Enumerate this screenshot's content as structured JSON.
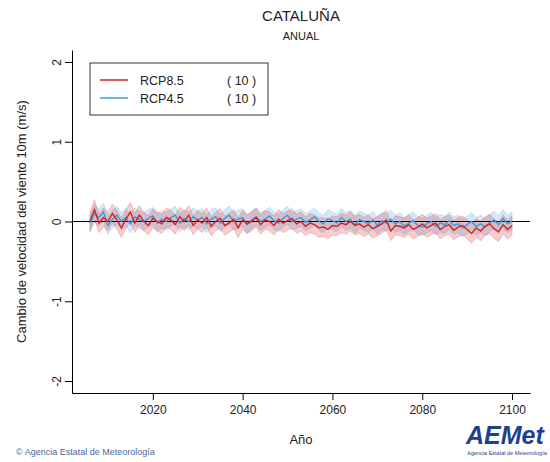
{
  "chart_data": {
    "type": "line",
    "title": "CATALUÑA",
    "subtitle": "ANUAL",
    "x_label": "Año",
    "y_label": "Cambio de velocidad del viento 10m (m/s)",
    "source": "© Agencia Estatal de Meteorología",
    "logo": "AEMet",
    "logo_subtitle": "Agencia Estatal de Meteorología",
    "xlim": [
      2002,
      2104
    ],
    "ylim": [
      -2.15,
      2.15
    ],
    "xticks": [
      2020,
      2040,
      2060,
      2080,
      2100
    ],
    "yticks": [
      -2,
      -1,
      0,
      1,
      2
    ],
    "reference_line": 0,
    "legend": "top-left",
    "x": [
      2006,
      2007,
      2008,
      2009,
      2010,
      2011,
      2012,
      2013,
      2014,
      2015,
      2016,
      2017,
      2018,
      2019,
      2020,
      2021,
      2022,
      2023,
      2024,
      2025,
      2026,
      2027,
      2028,
      2029,
      2030,
      2031,
      2032,
      2033,
      2034,
      2035,
      2036,
      2037,
      2038,
      2039,
      2040,
      2041,
      2042,
      2043,
      2044,
      2045,
      2046,
      2047,
      2048,
      2049,
      2050,
      2051,
      2052,
      2053,
      2054,
      2055,
      2056,
      2057,
      2058,
      2059,
      2060,
      2061,
      2062,
      2063,
      2064,
      2065,
      2066,
      2067,
      2068,
      2069,
      2070,
      2071,
      2072,
      2073,
      2074,
      2075,
      2076,
      2077,
      2078,
      2079,
      2080,
      2081,
      2082,
      2083,
      2084,
      2085,
      2086,
      2087,
      2088,
      2089,
      2090,
      2091,
      2092,
      2093,
      2094,
      2095,
      2096,
      2097,
      2098,
      2099,
      2100
    ],
    "series": [
      {
        "name": "RCP8.5",
        "models": "( 10 )",
        "color": "#d62020",
        "values": [
          0.0,
          0.15,
          -0.02,
          0.05,
          0.0,
          0.1,
          0.02,
          -0.08,
          0.03,
          0.12,
          -0.02,
          0.08,
          0.0,
          -0.05,
          0.04,
          0.0,
          -0.03,
          0.05,
          0.02,
          -0.04,
          0.06,
          0.0,
          0.08,
          -0.05,
          0.02,
          -0.02,
          0.05,
          -0.06,
          0.0,
          0.04,
          -0.05,
          -0.02,
          0.03,
          -0.08,
          0.02,
          -0.03,
          0.0,
          0.05,
          -0.04,
          0.02,
          0.0,
          -0.05,
          0.03,
          -0.02,
          0.01,
          0.04,
          -0.03,
          0.0,
          -0.06,
          -0.02,
          -0.04,
          -0.08,
          -0.07,
          -0.1,
          -0.05,
          -0.06,
          -0.02,
          -0.04,
          0.0,
          -0.05,
          -0.03,
          -0.07,
          -0.04,
          -0.09,
          -0.06,
          -0.03,
          0.02,
          -0.12,
          -0.05,
          -0.06,
          -0.08,
          -0.04,
          -0.1,
          -0.07,
          -0.03,
          -0.08,
          -0.05,
          -0.02,
          -0.1,
          -0.06,
          -0.04,
          -0.11,
          -0.07,
          -0.05,
          -0.1,
          -0.15,
          -0.08,
          -0.12,
          -0.06,
          -0.03,
          -0.09,
          -0.13,
          -0.04,
          -0.1,
          -0.05
        ],
        "lower": [
          -0.12,
          0.03,
          -0.14,
          -0.07,
          -0.12,
          -0.02,
          -0.1,
          -0.2,
          -0.09,
          0.0,
          -0.14,
          -0.04,
          -0.12,
          -0.17,
          -0.08,
          -0.12,
          -0.15,
          -0.07,
          -0.1,
          -0.16,
          -0.06,
          -0.12,
          -0.04,
          -0.17,
          -0.1,
          -0.14,
          -0.07,
          -0.18,
          -0.12,
          -0.08,
          -0.17,
          -0.14,
          -0.09,
          -0.2,
          -0.1,
          -0.15,
          -0.12,
          -0.07,
          -0.16,
          -0.1,
          -0.12,
          -0.17,
          -0.09,
          -0.14,
          -0.11,
          -0.08,
          -0.15,
          -0.12,
          -0.18,
          -0.14,
          -0.16,
          -0.2,
          -0.19,
          -0.22,
          -0.17,
          -0.18,
          -0.14,
          -0.16,
          -0.12,
          -0.17,
          -0.15,
          -0.19,
          -0.16,
          -0.21,
          -0.18,
          -0.15,
          -0.1,
          -0.24,
          -0.17,
          -0.18,
          -0.2,
          -0.16,
          -0.22,
          -0.19,
          -0.15,
          -0.2,
          -0.17,
          -0.14,
          -0.22,
          -0.18,
          -0.16,
          -0.23,
          -0.19,
          -0.17,
          -0.22,
          -0.27,
          -0.2,
          -0.24,
          -0.18,
          -0.15,
          -0.21,
          -0.25,
          -0.16,
          -0.22,
          -0.17
        ],
        "upper": [
          0.12,
          0.27,
          0.1,
          0.17,
          0.12,
          0.22,
          0.14,
          0.04,
          0.15,
          0.24,
          0.1,
          0.2,
          0.12,
          0.07,
          0.16,
          0.12,
          0.09,
          0.17,
          0.14,
          0.08,
          0.18,
          0.12,
          0.2,
          0.07,
          0.14,
          0.1,
          0.17,
          0.06,
          0.12,
          0.16,
          0.07,
          0.1,
          0.15,
          0.04,
          0.14,
          0.09,
          0.12,
          0.17,
          0.08,
          0.14,
          0.12,
          0.07,
          0.15,
          0.1,
          0.13,
          0.16,
          0.09,
          0.12,
          0.06,
          0.1,
          0.08,
          0.04,
          0.05,
          0.02,
          0.07,
          0.06,
          0.1,
          0.08,
          0.12,
          0.07,
          0.09,
          0.05,
          0.08,
          0.03,
          0.06,
          0.09,
          0.14,
          0.0,
          0.07,
          0.06,
          0.04,
          0.08,
          0.02,
          0.05,
          0.09,
          0.04,
          0.07,
          0.1,
          0.02,
          0.06,
          0.08,
          0.01,
          0.05,
          0.07,
          0.02,
          -0.03,
          0.04,
          0.0,
          0.06,
          0.09,
          0.03,
          -0.01,
          0.08,
          0.02,
          0.07
        ]
      },
      {
        "name": "RCP4.5",
        "models": "( 10 )",
        "color": "#3a9ae0",
        "values": [
          -0.02,
          0.1,
          0.05,
          0.12,
          -0.05,
          0.03,
          0.08,
          0.0,
          0.05,
          -0.03,
          0.06,
          0.02,
          0.0,
          0.04,
          0.07,
          -0.02,
          0.03,
          0.0,
          0.05,
          0.08,
          -0.02,
          0.04,
          0.0,
          0.06,
          0.02,
          0.05,
          -0.03,
          0.03,
          0.06,
          -0.02,
          0.04,
          0.08,
          0.0,
          0.03,
          0.05,
          -0.04,
          0.02,
          0.06,
          0.0,
          0.03,
          0.07,
          0.01,
          -0.02,
          0.04,
          0.08,
          0.0,
          0.03,
          0.05,
          -0.01,
          0.02,
          0.06,
          0.0,
          -0.03,
          0.04,
          0.01,
          -0.02,
          0.05,
          0.0,
          0.03,
          -0.04,
          0.02,
          0.0,
          -0.03,
          0.02,
          -0.05,
          0.01,
          -0.02,
          0.03,
          -0.03,
          0.0,
          -0.06,
          -0.02,
          0.01,
          -0.05,
          -0.07,
          -0.03,
          0.0,
          -0.06,
          -0.02,
          -0.04,
          0.01,
          -0.05,
          -0.03,
          -0.08,
          -0.04,
          0.0,
          -0.06,
          -0.03,
          -0.07,
          -0.02,
          0.02,
          -0.04,
          0.04,
          -0.03,
          0.01
        ],
        "lower": [
          -0.13,
          -0.01,
          -0.06,
          0.01,
          -0.16,
          -0.08,
          -0.03,
          -0.11,
          -0.06,
          -0.14,
          -0.05,
          -0.09,
          -0.11,
          -0.07,
          -0.04,
          -0.13,
          -0.08,
          -0.11,
          -0.06,
          -0.03,
          -0.13,
          -0.07,
          -0.11,
          -0.05,
          -0.09,
          -0.06,
          -0.14,
          -0.08,
          -0.05,
          -0.13,
          -0.07,
          -0.03,
          -0.11,
          -0.08,
          -0.06,
          -0.15,
          -0.09,
          -0.05,
          -0.11,
          -0.08,
          -0.04,
          -0.1,
          -0.13,
          -0.07,
          -0.03,
          -0.11,
          -0.08,
          -0.06,
          -0.12,
          -0.09,
          -0.05,
          -0.11,
          -0.14,
          -0.07,
          -0.1,
          -0.13,
          -0.06,
          -0.11,
          -0.08,
          -0.15,
          -0.09,
          -0.11,
          -0.14,
          -0.09,
          -0.16,
          -0.1,
          -0.13,
          -0.08,
          -0.14,
          -0.11,
          -0.17,
          -0.13,
          -0.1,
          -0.16,
          -0.18,
          -0.14,
          -0.11,
          -0.17,
          -0.13,
          -0.15,
          -0.1,
          -0.16,
          -0.14,
          -0.19,
          -0.15,
          -0.11,
          -0.17,
          -0.14,
          -0.18,
          -0.13,
          -0.09,
          -0.15,
          -0.07,
          -0.14,
          -0.1
        ],
        "upper": [
          0.09,
          0.21,
          0.16,
          0.23,
          0.06,
          0.14,
          0.19,
          0.11,
          0.16,
          0.08,
          0.17,
          0.13,
          0.11,
          0.15,
          0.18,
          0.09,
          0.14,
          0.11,
          0.16,
          0.19,
          0.09,
          0.15,
          0.11,
          0.17,
          0.13,
          0.16,
          0.08,
          0.14,
          0.17,
          0.09,
          0.15,
          0.19,
          0.11,
          0.14,
          0.16,
          0.07,
          0.13,
          0.17,
          0.11,
          0.14,
          0.18,
          0.12,
          0.09,
          0.15,
          0.19,
          0.11,
          0.14,
          0.16,
          0.1,
          0.13,
          0.17,
          0.11,
          0.08,
          0.15,
          0.12,
          0.09,
          0.16,
          0.11,
          0.14,
          0.07,
          0.13,
          0.11,
          0.08,
          0.13,
          0.06,
          0.12,
          0.09,
          0.14,
          0.08,
          0.11,
          0.05,
          0.09,
          0.12,
          0.06,
          0.04,
          0.08,
          0.11,
          0.05,
          0.09,
          0.07,
          0.12,
          0.06,
          0.08,
          0.03,
          0.07,
          0.11,
          0.05,
          0.08,
          0.04,
          0.09,
          0.13,
          0.07,
          0.15,
          0.08,
          0.12
        ]
      }
    ]
  }
}
